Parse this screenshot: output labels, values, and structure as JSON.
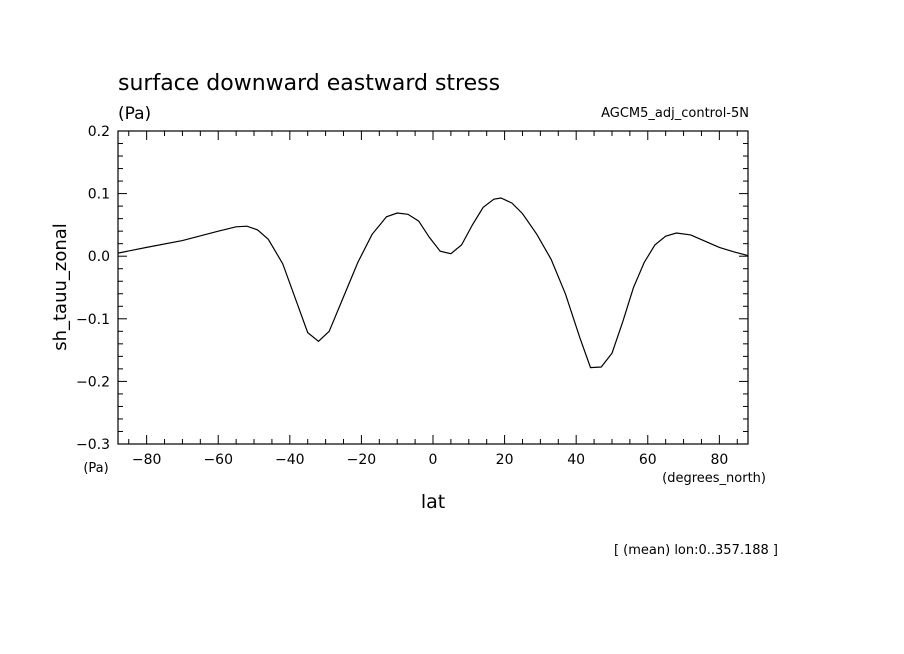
{
  "chart_data": {
    "type": "line",
    "title": "surface downward eastward stress",
    "units_label": "(Pa)",
    "dataset_label": "AGCM5_adj_control-5N",
    "ylabel": "sh_tauu_zonal",
    "y_unit_label": "(Pa)",
    "xlabel": "lat",
    "x_unit_label": "(degrees_north)",
    "footnote": "[ (mean) lon:0..357.188 ]",
    "xlim": [
      -88,
      88
    ],
    "ylim": [
      -0.3,
      0.2
    ],
    "x_ticks": [
      -80,
      -60,
      -40,
      -20,
      0,
      20,
      40,
      60,
      80
    ],
    "x_tick_labels": [
      "−80",
      "−60",
      "−40",
      "−20",
      "0",
      "20",
      "40",
      "60",
      "80"
    ],
    "y_ticks": [
      -0.3,
      -0.2,
      -0.1,
      0.0,
      0.1,
      0.2
    ],
    "y_tick_labels": [
      "−0.3",
      "−0.2",
      "−0.1",
      "0.0",
      "0.1",
      "0.2"
    ],
    "grid": false,
    "line_color": "#000000",
    "series": [
      {
        "x": [
          -88,
          -80,
          -70,
          -60,
          -55,
          -52,
          -49,
          -46,
          -42,
          -38,
          -35,
          -32,
          -29,
          -25,
          -21,
          -17,
          -13,
          -10,
          -7,
          -4,
          -1,
          2,
          5,
          8,
          11,
          14,
          17,
          19,
          22,
          25,
          29,
          33,
          37,
          41,
          44,
          47,
          50,
          53,
          56,
          59,
          62,
          65,
          68,
          72,
          76,
          80,
          84,
          88
        ],
        "y": [
          0.005,
          0.014,
          0.025,
          0.04,
          0.047,
          0.048,
          0.042,
          0.027,
          -0.012,
          -0.075,
          -0.122,
          -0.136,
          -0.12,
          -0.065,
          -0.01,
          0.035,
          0.063,
          0.069,
          0.067,
          0.056,
          0.03,
          0.008,
          0.004,
          0.018,
          0.05,
          0.078,
          0.091,
          0.093,
          0.085,
          0.068,
          0.035,
          -0.005,
          -0.06,
          -0.13,
          -0.178,
          -0.177,
          -0.155,
          -0.105,
          -0.05,
          -0.01,
          0.018,
          0.032,
          0.037,
          0.034,
          0.024,
          0.014,
          0.007,
          0.001
        ]
      }
    ]
  }
}
